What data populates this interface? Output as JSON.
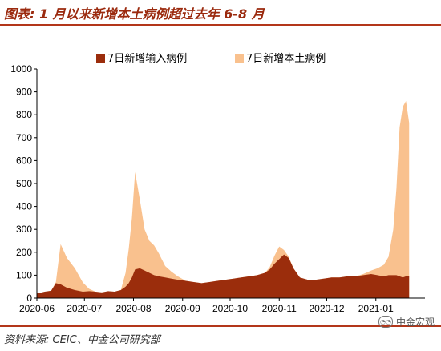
{
  "header": {
    "title": "图表: 1 月以来新增本土病例超过去年 6-8 月"
  },
  "footer": {
    "source": "资料来源: CEIC、中金公司研究部",
    "watermark": "中金宏观"
  },
  "colors": {
    "imported": "#9b2d0c",
    "local": "#f9c18e",
    "accent": "#b3361a"
  },
  "chart_data": {
    "type": "area",
    "stacked": true,
    "title": "",
    "xlabel": "",
    "ylabel": "",
    "ylim": [
      0,
      1000
    ],
    "yticks": [
      0,
      100,
      200,
      300,
      400,
      500,
      600,
      700,
      800,
      900,
      1000
    ],
    "xticks": [
      "2020-06",
      "2020-07",
      "2020-08",
      "2020-09",
      "2020-10",
      "2020-11",
      "2020-12",
      "2021-01"
    ],
    "grid": false,
    "legend_position": "top",
    "x": [
      "2020-06-01",
      "2020-06-06",
      "2020-06-10",
      "2020-06-13",
      "2020-06-16",
      "2020-06-20",
      "2020-06-25",
      "2020-06-30",
      "2020-07-04",
      "2020-07-08",
      "2020-07-12",
      "2020-07-16",
      "2020-07-20",
      "2020-07-24",
      "2020-07-27",
      "2020-07-29",
      "2020-07-31",
      "2020-08-02",
      "2020-08-05",
      "2020-08-08",
      "2020-08-11",
      "2020-08-14",
      "2020-08-17",
      "2020-08-21",
      "2020-08-25",
      "2020-08-29",
      "2020-09-03",
      "2020-09-08",
      "2020-09-13",
      "2020-09-18",
      "2020-09-23",
      "2020-09-28",
      "2020-10-03",
      "2020-10-08",
      "2020-10-13",
      "2020-10-18",
      "2020-10-23",
      "2020-10-26",
      "2020-10-29",
      "2020-11-01",
      "2020-11-04",
      "2020-11-07",
      "2020-11-10",
      "2020-11-14",
      "2020-11-19",
      "2020-11-24",
      "2020-11-29",
      "2020-12-04",
      "2020-12-09",
      "2020-12-14",
      "2020-12-19",
      "2020-12-24",
      "2020-12-29",
      "2021-01-02",
      "2021-01-06",
      "2021-01-09",
      "2021-01-12",
      "2021-01-14",
      "2021-01-16",
      "2021-01-18",
      "2021-01-20",
      "2021-01-22"
    ],
    "series": [
      {
        "name": "7日新增输入病例",
        "values": [
          20,
          28,
          32,
          65,
          60,
          45,
          35,
          28,
          30,
          28,
          25,
          30,
          28,
          35,
          50,
          65,
          90,
          125,
          130,
          120,
          110,
          100,
          95,
          90,
          85,
          80,
          75,
          70,
          65,
          70,
          75,
          80,
          85,
          90,
          95,
          100,
          110,
          125,
          150,
          170,
          190,
          175,
          130,
          90,
          80,
          80,
          85,
          90,
          90,
          95,
          95,
          100,
          105,
          100,
          95,
          100,
          100,
          100,
          95,
          90,
          95,
          95
        ]
      },
      {
        "name": "7日新增本土病例",
        "values": [
          0,
          0,
          0,
          5,
          175,
          130,
          95,
          40,
          10,
          0,
          0,
          0,
          0,
          0,
          60,
          150,
          260,
          425,
          300,
          180,
          140,
          130,
          100,
          50,
          30,
          15,
          0,
          0,
          0,
          0,
          0,
          0,
          0,
          0,
          0,
          0,
          0,
          10,
          35,
          55,
          20,
          5,
          0,
          0,
          0,
          0,
          0,
          0,
          0,
          0,
          0,
          5,
          15,
          30,
          50,
          80,
          200,
          380,
          650,
          745,
          765,
          670
        ]
      }
    ]
  }
}
